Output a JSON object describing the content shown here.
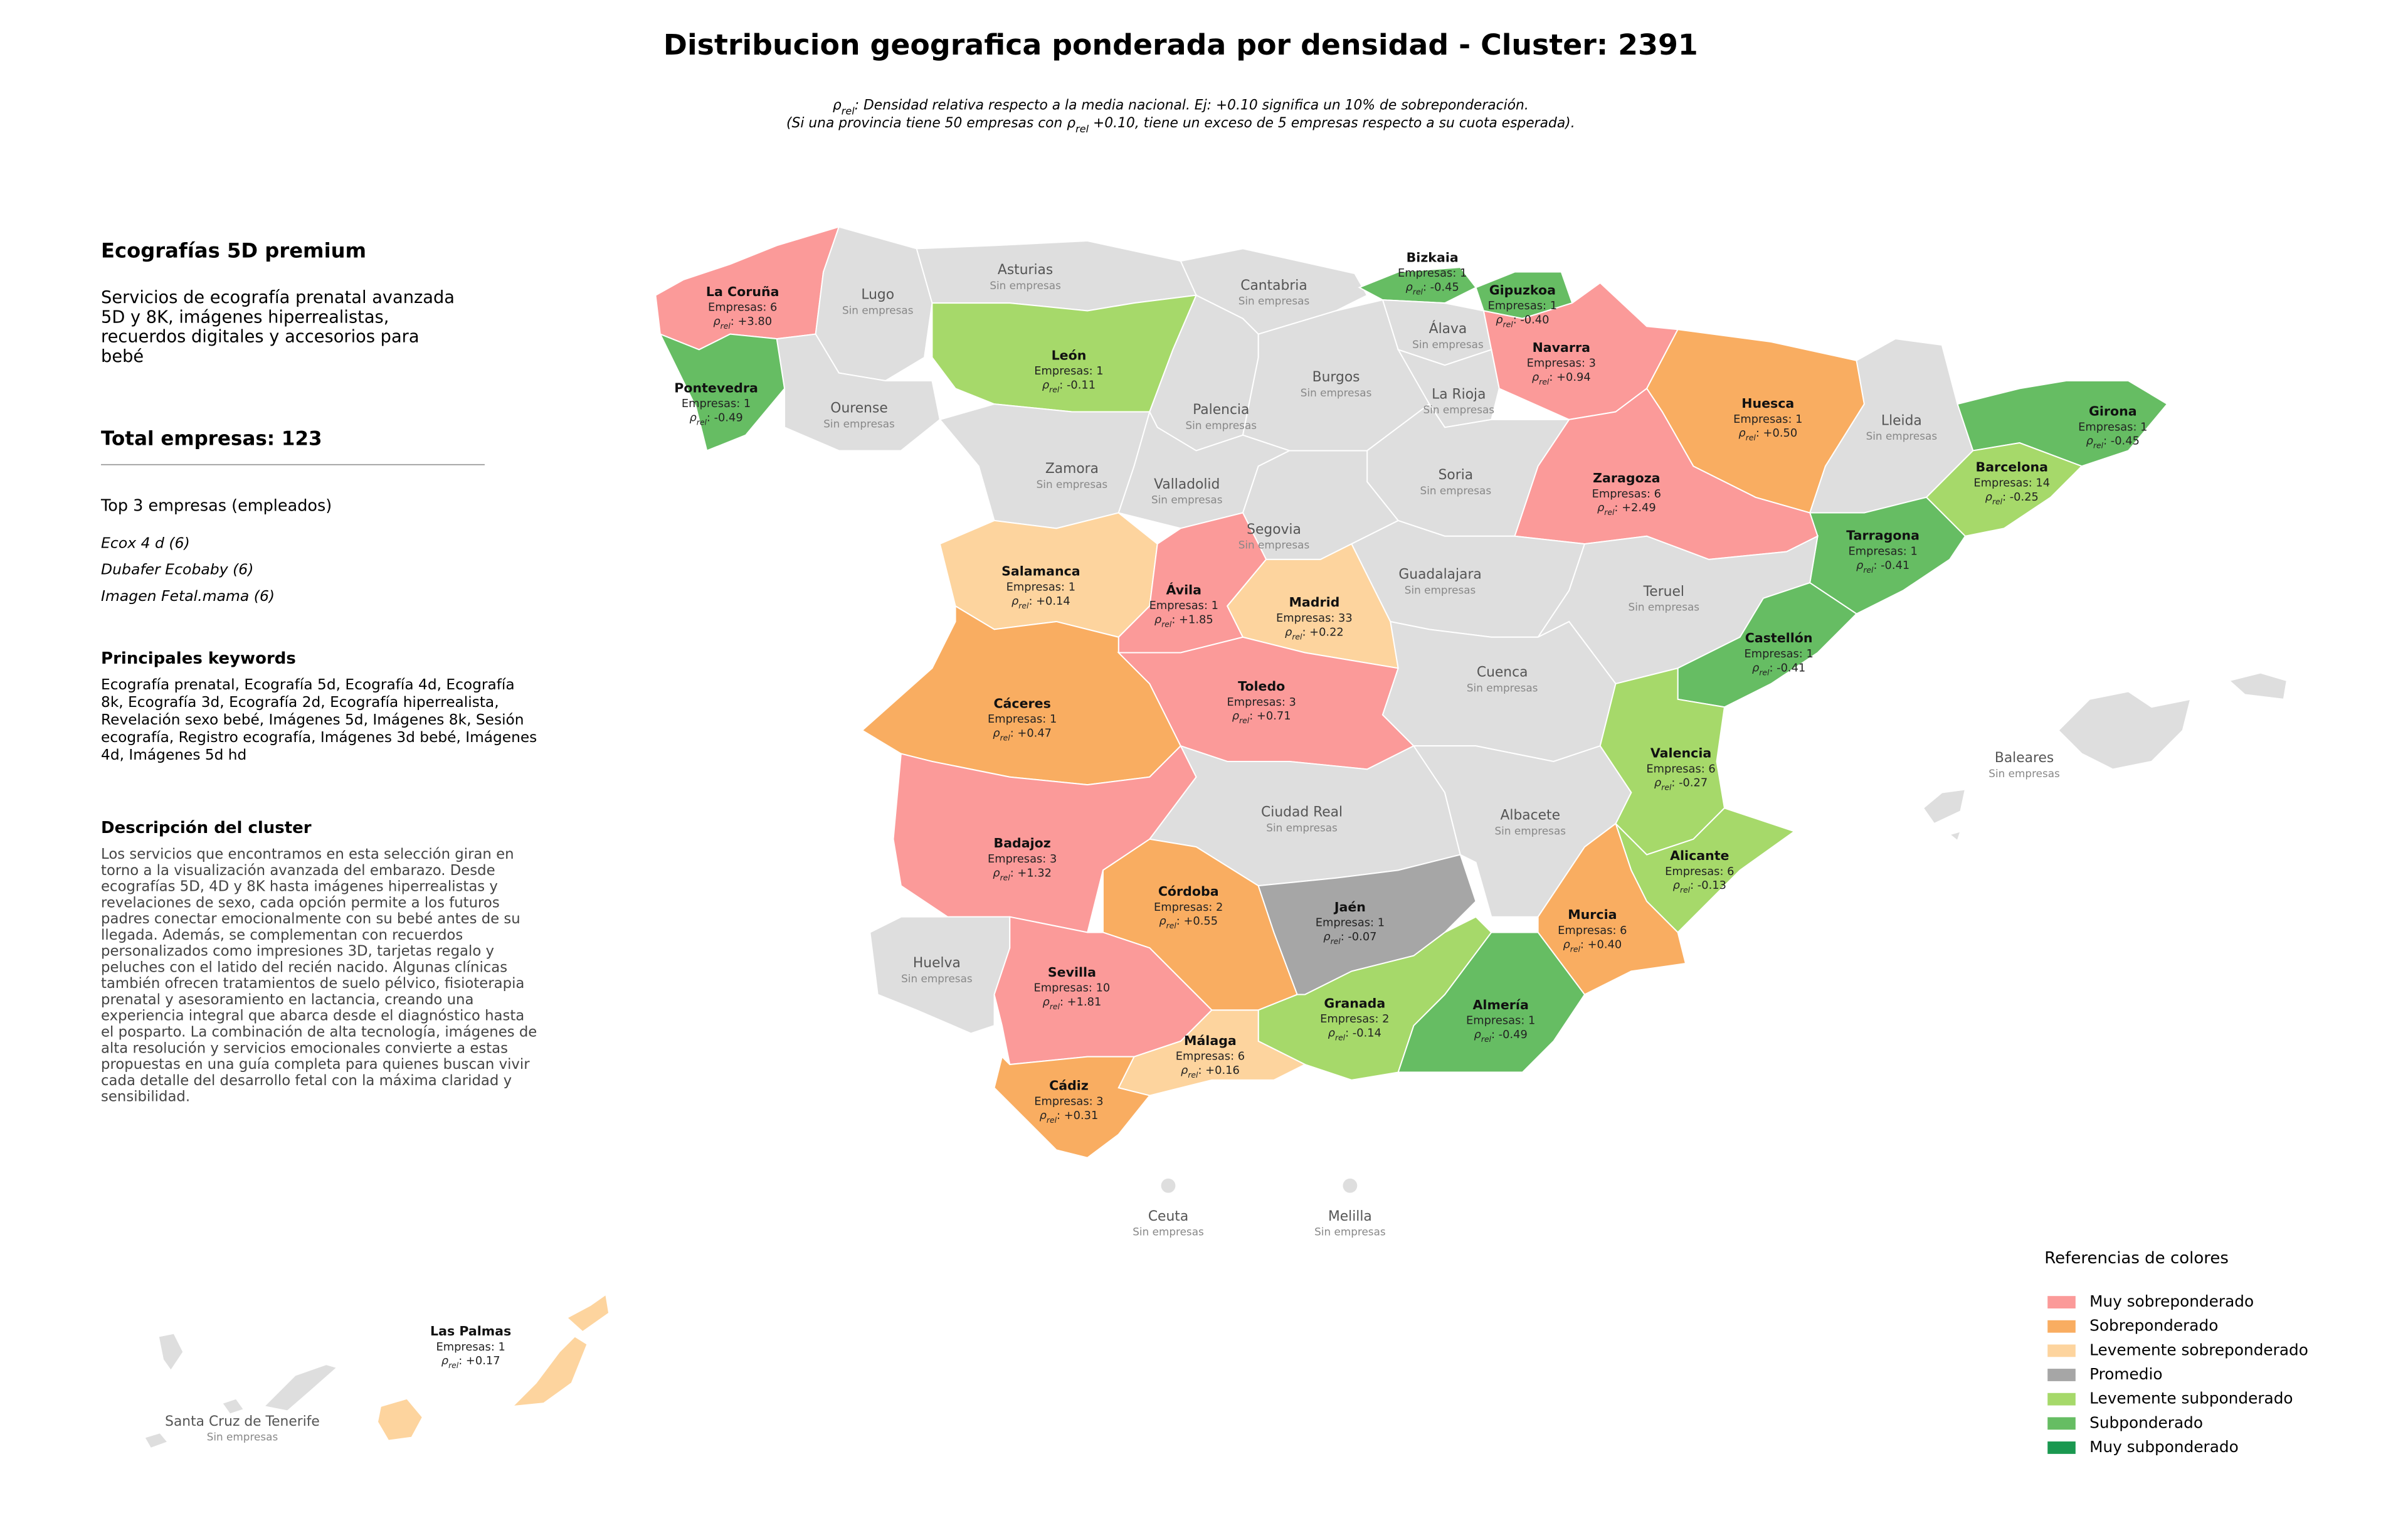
{
  "header": {
    "title": "Distribucion geografica ponderada por densidad - Cluster: 2391",
    "subtitle": [
      [
        "ρ",
        "rel",
        ": Densidad relativa respecto a la media nacional. Ej: +0.10 significa un 10% de sobreponderación."
      ],
      [
        "(Si una provincia tiene 50 empresas con ρ",
        "rel",
        " +0.10, tiene un exceso de 5 empresas respecto a su cuota esperada)."
      ]
    ]
  },
  "sidebar": {
    "cluster_name": "Ecografías 5D premium",
    "cluster_summary": [
      "Servicios de ecografía prenatal avanzada",
      "5D y 8K, imágenes hiperrealistas,",
      "recuerdos digitales y accesorios para",
      "bebé"
    ],
    "total": "Total empresas: 123",
    "top_title": "Top 3 empresas (empleados)",
    "top_companies": [
      "Ecox 4 d (6)",
      "Dubafer Ecobaby (6)",
      "Imagen Fetal.mama (6)"
    ],
    "keywords_title": "Principales keywords",
    "keywords": [
      "Ecografía prenatal, Ecografía 5d, Ecografía 4d, Ecografía",
      "8k, Ecografía 3d, Ecografía 2d, Ecografía hiperrealista,",
      "Revelación sexo bebé, Imágenes 5d, Imágenes 8k, Sesión",
      "ecografía, Registro ecografía, Imágenes 3d bebé, Imágenes",
      "4d, Imágenes 5d hd"
    ],
    "description_title": "Descripción del cluster",
    "description": [
      "Los servicios que encontramos en esta selección giran en",
      "torno a la visualización avanzada del embarazo. Desde",
      "ecografías 5D, 4D y 8K hasta imágenes hiperrealistas y",
      "revelaciones de sexo, cada opción permite a los futuros",
      "padres conectar emocionalmente con su bebé antes de su",
      "llegada. Además, se complementan con recuerdos",
      "personalizados como impresiones 3D, tarjetas regalo y",
      "peluches con el latido del recién nacido. Algunas clínicas",
      "también ofrecen tratamientos de suelo pélvico, fisioterapia",
      "prenatal y asesoramiento en lactancia, creando una",
      "experiencia integral que abarca desde el diagnóstico hasta",
      "el posparto. La combinación de alta tecnología, imágenes de",
      "alta resolución y servicios emocionales convierte a estas",
      "propuestas en una guía completa para quienes buscan vivir",
      "cada detalle del desarrollo fetal con la máxima claridad y",
      "sensibilidad."
    ]
  },
  "map": {
    "rho_symbol": "ρ",
    "rho_sub": "rel",
    "provinces": [
      {
        "name": "La Coruña",
        "empresas": "Empresas: 6",
        "rho": ": +3.80",
        "color": "#fb9a99"
      },
      {
        "name": "Lugo",
        "note": "Sin empresas",
        "color": "#dedede"
      },
      {
        "name": "Pontevedra",
        "empresas": "Empresas: 1",
        "rho": ": -0.49",
        "color": "#66bd63"
      },
      {
        "name": "Ourense",
        "note": "Sin empresas",
        "color": "#dedede"
      },
      {
        "name": "Asturias",
        "note": "Sin empresas",
        "color": "#dedede"
      },
      {
        "name": "Cantabria",
        "note": "Sin empresas",
        "color": "#dedede"
      },
      {
        "name": "Bizkaia",
        "empresas": "Empresas: 1",
        "rho": ": -0.45",
        "color": "#66bd63"
      },
      {
        "name": "Gipuzkoa",
        "empresas": "Empresas: 1",
        "rho": ": -0.40",
        "color": "#66bd63"
      },
      {
        "name": "Álava",
        "note": "Sin empresas",
        "color": "#dedede"
      },
      {
        "name": "Navarra",
        "empresas": "Empresas: 3",
        "rho": ": +0.94",
        "color": "#fb9a99"
      },
      {
        "name": "León",
        "empresas": "Empresas: 1",
        "rho": ": -0.11",
        "color": "#a6d96a"
      },
      {
        "name": "Palencia",
        "note": "Sin empresas",
        "color": "#dedede"
      },
      {
        "name": "Burgos",
        "note": "Sin empresas",
        "color": "#dedede"
      },
      {
        "name": "La Rioja",
        "note": "Sin empresas",
        "color": "#dedede"
      },
      {
        "name": "Huesca",
        "empresas": "Empresas: 1",
        "rho": ": +0.50",
        "color": "#f9ad61"
      },
      {
        "name": "Lleida",
        "note": "Sin empresas",
        "color": "#dedede"
      },
      {
        "name": "Girona",
        "empresas": "Empresas: 1",
        "rho": ": -0.45",
        "color": "#66bd63"
      },
      {
        "name": "Barcelona",
        "empresas": "Empresas: 14",
        "rho": ": -0.25",
        "color": "#a6d96a"
      },
      {
        "name": "Tarragona",
        "empresas": "Empresas: 1",
        "rho": ": -0.41",
        "color": "#66bd63"
      },
      {
        "name": "Zaragoza",
        "empresas": "Empresas: 6",
        "rho": ": +2.49",
        "color": "#fb9a99"
      },
      {
        "name": "Soria",
        "note": "Sin empresas",
        "color": "#dedede"
      },
      {
        "name": "Zamora",
        "note": "Sin empresas",
        "color": "#dedede"
      },
      {
        "name": "Valladolid",
        "note": "Sin empresas",
        "color": "#dedede"
      },
      {
        "name": "Segovia",
        "note": "Sin empresas",
        "color": "#dedede"
      },
      {
        "name": "Salamanca",
        "empresas": "Empresas: 1",
        "rho": ": +0.14",
        "color": "#fdd49e"
      },
      {
        "name": "Ávila",
        "empresas": "Empresas: 1",
        "rho": ": +1.85",
        "color": "#fb9a99"
      },
      {
        "name": "Madrid",
        "empresas": "Empresas: 33",
        "rho": ": +0.22",
        "color": "#fdd49e"
      },
      {
        "name": "Guadalajara",
        "note": "Sin empresas",
        "color": "#dedede"
      },
      {
        "name": "Teruel",
        "note": "Sin empresas",
        "color": "#dedede"
      },
      {
        "name": "Castellón",
        "empresas": "Empresas: 1",
        "rho": ": -0.41",
        "color": "#66bd63"
      },
      {
        "name": "Cáceres",
        "empresas": "Empresas: 1",
        "rho": ": +0.47",
        "color": "#f9ad61"
      },
      {
        "name": "Toledo",
        "empresas": "Empresas: 3",
        "rho": ": +0.71",
        "color": "#fb9a99"
      },
      {
        "name": "Cuenca",
        "note": "Sin empresas",
        "color": "#dedede"
      },
      {
        "name": "Valencia",
        "empresas": "Empresas: 6",
        "rho": ": -0.27",
        "color": "#a6d96a"
      },
      {
        "name": "Badajoz",
        "empresas": "Empresas: 3",
        "rho": ": +1.32",
        "color": "#fb9a99"
      },
      {
        "name": "Ciudad Real",
        "note": "Sin empresas",
        "color": "#dedede"
      },
      {
        "name": "Albacete",
        "note": "Sin empresas",
        "color": "#dedede"
      },
      {
        "name": "Alicante",
        "empresas": "Empresas: 6",
        "rho": ": -0.13",
        "color": "#a6d96a"
      },
      {
        "name": "Murcia",
        "empresas": "Empresas: 6",
        "rho": ": +0.40",
        "color": "#f9ad61"
      },
      {
        "name": "Huelva",
        "note": "Sin empresas",
        "color": "#dedede"
      },
      {
        "name": "Córdoba",
        "empresas": "Empresas: 2",
        "rho": ": +0.55",
        "color": "#f9ad61"
      },
      {
        "name": "Jaén",
        "empresas": "Empresas: 1",
        "rho": ": -0.07",
        "color": "#a6a6a6"
      },
      {
        "name": "Sevilla",
        "empresas": "Empresas: 10",
        "rho": ": +1.81",
        "color": "#fb9a99"
      },
      {
        "name": "Granada",
        "empresas": "Empresas: 2",
        "rho": ": -0.14",
        "color": "#a6d96a"
      },
      {
        "name": "Almería",
        "empresas": "Empresas: 1",
        "rho": ": -0.49",
        "color": "#66bd63"
      },
      {
        "name": "Málaga",
        "empresas": "Empresas: 6",
        "rho": ": +0.16",
        "color": "#fdd49e"
      },
      {
        "name": "Cádiz",
        "empresas": "Empresas: 3",
        "rho": ": +0.31",
        "color": "#f9ad61"
      },
      {
        "name": "Baleares",
        "note": "Sin empresas",
        "color": "#dedede"
      },
      {
        "name": "Ceuta",
        "note": "Sin empresas",
        "color": "#dedede"
      },
      {
        "name": "Melilla",
        "note": "Sin empresas",
        "color": "#dedede"
      },
      {
        "name": "Las Palmas",
        "empresas": "Empresas: 1",
        "rho": ": +0.17",
        "color": "#fdd49e"
      },
      {
        "name": "Santa Cruz de Tenerife",
        "note": "Sin empresas",
        "color": "#dedede"
      }
    ]
  },
  "legend": {
    "title": "Referencias de colores",
    "items": [
      {
        "label": "Muy sobreponderado",
        "color": "#fb9a99"
      },
      {
        "label": "Sobreponderado",
        "color": "#f9ad61"
      },
      {
        "label": "Levemente sobreponderado",
        "color": "#fdd49e"
      },
      {
        "label": "Promedio",
        "color": "#a6a6a6"
      },
      {
        "label": "Levemente subponderado",
        "color": "#a6d96a"
      },
      {
        "label": "Subponderado",
        "color": "#66bd63"
      },
      {
        "label": "Muy subponderado",
        "color": "#1a9850"
      }
    ]
  }
}
